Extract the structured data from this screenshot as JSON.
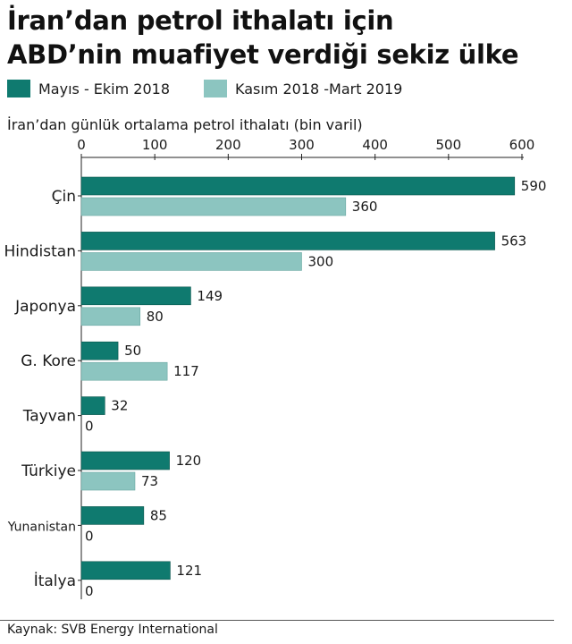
{
  "header": {
    "title_line1": "İran’dan petrol ithalatı için",
    "title_line2": "ABD’nin muafiyet verdiği sekiz ülke"
  },
  "legend": [
    {
      "label": "Mayıs - Ekim 2018",
      "color": "#0f7a6f"
    },
    {
      "label": "Kasım 2018 -Mart 2019",
      "color": "#8cc5c0"
    }
  ],
  "subtitle": "İran’dan günlük ortalama petrol ithalatı (bin varil)",
  "source": "Kaynak: SVB Energy International",
  "chart_data": {
    "type": "bar",
    "orientation": "horizontal",
    "categories": [
      "Çin",
      "Hindistan",
      "Japonya",
      "G. Kore",
      "Tayvan",
      "Türkiye",
      "Yunanistan",
      "İtalya"
    ],
    "series": [
      {
        "name": "Mayıs - Ekim 2018",
        "values": [
          590,
          563,
          149,
          50,
          32,
          120,
          85,
          121
        ],
        "color": "#0f7a6f"
      },
      {
        "name": "Kasım 2018 -Mart 2019",
        "values": [
          360,
          300,
          80,
          117,
          0,
          73,
          0,
          0
        ],
        "color": "#8cc5c0"
      }
    ],
    "xlim": [
      0,
      600
    ],
    "xticks": [
      0,
      100,
      200,
      300,
      400,
      500,
      600
    ],
    "grid": false,
    "legend_position": "top-left"
  }
}
